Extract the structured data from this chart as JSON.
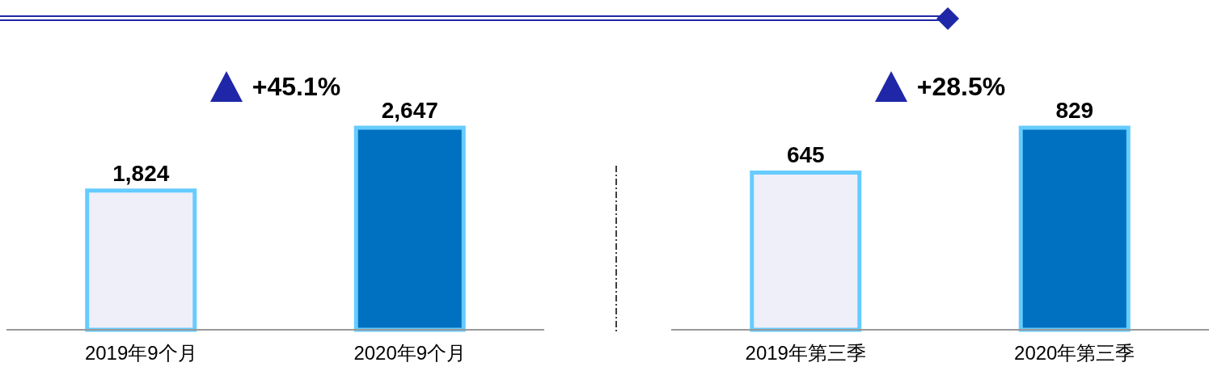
{
  "chart_data": [
    {
      "type": "bar",
      "categories": [
        "2019年9个月",
        "2020年9个月"
      ],
      "values": [
        1824,
        2647
      ],
      "value_labels": [
        "1,824",
        "2,647"
      ],
      "colors": [
        "#eeeff8",
        "#0070c0"
      ],
      "annotations": [
        "+45.1%"
      ]
    },
    {
      "type": "bar",
      "categories": [
        "2019年第三季",
        "2020年第三季"
      ],
      "values": [
        645,
        829
      ],
      "value_labels": [
        "645",
        "829"
      ],
      "colors": [
        "#eeeff8",
        "#0070c0"
      ],
      "annotations": [
        "+28.5%"
      ]
    }
  ]
}
